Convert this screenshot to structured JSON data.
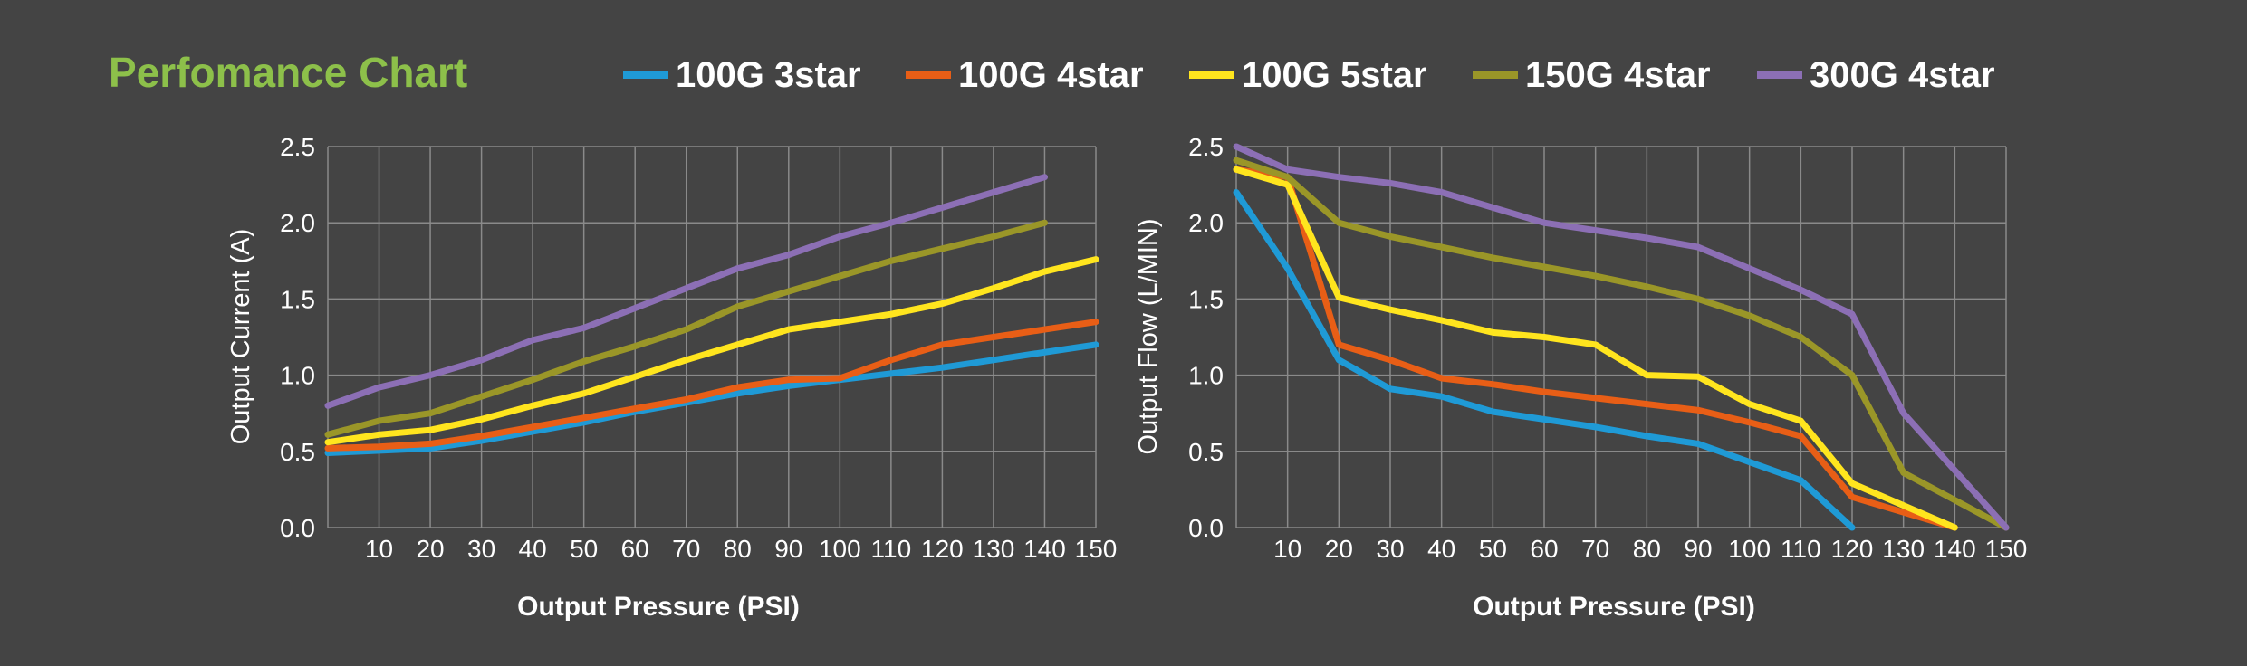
{
  "title": "Perfomance Chart",
  "colors": {
    "background": "#444444",
    "title": "#8dc04a",
    "text": "#ffffff",
    "grid": "#8a8a8a"
  },
  "legend": [
    {
      "name": "100G 3star",
      "color": "#1f9ad6"
    },
    {
      "name": "100G 4star",
      "color": "#e85e16"
    },
    {
      "name": "100G 5star",
      "color": "#ffe51e"
    },
    {
      "name": "150G 4star",
      "color": "#9a9628"
    },
    {
      "name": "300G 4star",
      "color": "#8c6fb5"
    }
  ],
  "chart_data": [
    {
      "type": "line",
      "title": "",
      "xlabel": "Output Pressure (PSI)",
      "ylabel": "Output Current (A)",
      "xlim": [
        0,
        150
      ],
      "ylim": [
        0,
        2.5
      ],
      "x_ticks": [
        10,
        20,
        30,
        40,
        50,
        60,
        70,
        80,
        90,
        100,
        110,
        120,
        130,
        140,
        150
      ],
      "y_ticks": [
        "0.0",
        "0.5",
        "1.0",
        "1.5",
        "2.0",
        "2.5"
      ],
      "grid": true,
      "legend": "top",
      "series": [
        {
          "name": "100G 3star",
          "color": "#1f9ad6",
          "points": [
            [
              0,
              0.49
            ],
            [
              20,
              0.52
            ],
            [
              30,
              0.57
            ],
            [
              40,
              0.63
            ],
            [
              50,
              0.69
            ],
            [
              60,
              0.76
            ],
            [
              70,
              0.82
            ],
            [
              80,
              0.88
            ],
            [
              90,
              0.93
            ],
            [
              100,
              0.97
            ],
            [
              110,
              1.01
            ],
            [
              120,
              1.05
            ],
            [
              130,
              1.1
            ],
            [
              140,
              1.15
            ],
            [
              150,
              1.2
            ]
          ]
        },
        {
          "name": "100G 4star",
          "color": "#e85e16",
          "points": [
            [
              0,
              0.52
            ],
            [
              10,
              0.53
            ],
            [
              20,
              0.55
            ],
            [
              30,
              0.6
            ],
            [
              40,
              0.66
            ],
            [
              50,
              0.72
            ],
            [
              60,
              0.78
            ],
            [
              70,
              0.84
            ],
            [
              80,
              0.92
            ],
            [
              90,
              0.97
            ],
            [
              100,
              0.98
            ],
            [
              110,
              1.1
            ],
            [
              120,
              1.2
            ],
            [
              130,
              1.25
            ],
            [
              140,
              1.3
            ],
            [
              150,
              1.35
            ]
          ]
        },
        {
          "name": "100G 5star",
          "color": "#ffe51e",
          "points": [
            [
              0,
              0.56
            ],
            [
              10,
              0.61
            ],
            [
              20,
              0.64
            ],
            [
              30,
              0.71
            ],
            [
              40,
              0.8
            ],
            [
              50,
              0.88
            ],
            [
              60,
              0.99
            ],
            [
              70,
              1.1
            ],
            [
              80,
              1.2
            ],
            [
              90,
              1.3
            ],
            [
              100,
              1.35
            ],
            [
              110,
              1.4
            ],
            [
              120,
              1.47
            ],
            [
              130,
              1.57
            ],
            [
              140,
              1.68
            ],
            [
              150,
              1.76
            ]
          ]
        },
        {
          "name": "150G 4star",
          "color": "#9a9628",
          "points": [
            [
              0,
              0.61
            ],
            [
              10,
              0.7
            ],
            [
              20,
              0.75
            ],
            [
              30,
              0.86
            ],
            [
              40,
              0.97
            ],
            [
              50,
              1.09
            ],
            [
              60,
              1.19
            ],
            [
              70,
              1.3
            ],
            [
              80,
              1.45
            ],
            [
              90,
              1.55
            ],
            [
              100,
              1.65
            ],
            [
              110,
              1.75
            ],
            [
              120,
              1.83
            ],
            [
              130,
              1.91
            ],
            [
              140,
              2.0
            ]
          ]
        },
        {
          "name": "300G 4star",
          "color": "#8c6fb5",
          "points": [
            [
              0,
              0.8
            ],
            [
              10,
              0.92
            ],
            [
              20,
              1.0
            ],
            [
              30,
              1.1
            ],
            [
              40,
              1.23
            ],
            [
              50,
              1.31
            ],
            [
              60,
              1.44
            ],
            [
              70,
              1.57
            ],
            [
              80,
              1.7
            ],
            [
              90,
              1.79
            ],
            [
              100,
              1.91
            ],
            [
              110,
              2.0
            ],
            [
              120,
              2.1
            ],
            [
              130,
              2.2
            ],
            [
              140,
              2.3
            ]
          ]
        }
      ]
    },
    {
      "type": "line",
      "title": "",
      "xlabel": "Output Pressure (PSI)",
      "ylabel": "Output Flow (L/MIN)",
      "xlim": [
        0,
        150
      ],
      "ylim": [
        0,
        2.5
      ],
      "x_ticks": [
        10,
        20,
        30,
        40,
        50,
        60,
        70,
        80,
        90,
        100,
        110,
        120,
        130,
        140,
        150
      ],
      "y_ticks": [
        "0.0",
        "0.5",
        "1.0",
        "1.5",
        "2.0",
        "2.5"
      ],
      "grid": true,
      "legend": "top",
      "series": [
        {
          "name": "100G 3star",
          "color": "#1f9ad6",
          "points": [
            [
              0,
              2.2
            ],
            [
              10,
              1.7
            ],
            [
              20,
              1.1
            ],
            [
              30,
              0.91
            ],
            [
              40,
              0.86
            ],
            [
              50,
              0.76
            ],
            [
              60,
              0.71
            ],
            [
              70,
              0.66
            ],
            [
              80,
              0.6
            ],
            [
              90,
              0.55
            ],
            [
              100,
              0.43
            ],
            [
              110,
              0.31
            ],
            [
              120,
              0.0
            ]
          ]
        },
        {
          "name": "100G 4star",
          "color": "#e85e16",
          "points": [
            [
              0,
              2.35
            ],
            [
              10,
              2.3
            ],
            [
              20,
              1.2
            ],
            [
              30,
              1.1
            ],
            [
              40,
              0.98
            ],
            [
              50,
              0.94
            ],
            [
              60,
              0.89
            ],
            [
              70,
              0.85
            ],
            [
              80,
              0.81
            ],
            [
              90,
              0.77
            ],
            [
              100,
              0.69
            ],
            [
              110,
              0.6
            ],
            [
              120,
              0.2
            ],
            [
              140,
              0.0
            ]
          ]
        },
        {
          "name": "100G 5star",
          "color": "#ffe51e",
          "points": [
            [
              0,
              2.35
            ],
            [
              10,
              2.25
            ],
            [
              20,
              1.51
            ],
            [
              30,
              1.43
            ],
            [
              40,
              1.36
            ],
            [
              50,
              1.28
            ],
            [
              60,
              1.25
            ],
            [
              70,
              1.2
            ],
            [
              80,
              1.0
            ],
            [
              90,
              0.99
            ],
            [
              100,
              0.81
            ],
            [
              110,
              0.7
            ],
            [
              120,
              0.29
            ],
            [
              140,
              0.0
            ]
          ]
        },
        {
          "name": "150G 4star",
          "color": "#9a9628",
          "points": [
            [
              0,
              2.41
            ],
            [
              10,
              2.3
            ],
            [
              20,
              2.0
            ],
            [
              30,
              1.91
            ],
            [
              40,
              1.84
            ],
            [
              50,
              1.77
            ],
            [
              60,
              1.71
            ],
            [
              70,
              1.65
            ],
            [
              80,
              1.58
            ],
            [
              90,
              1.5
            ],
            [
              100,
              1.39
            ],
            [
              110,
              1.25
            ],
            [
              120,
              1.0
            ],
            [
              130,
              0.36
            ],
            [
              150,
              0.0
            ]
          ]
        },
        {
          "name": "300G 4star",
          "color": "#8c6fb5",
          "points": [
            [
              0,
              2.5
            ],
            [
              10,
              2.35
            ],
            [
              20,
              2.3
            ],
            [
              30,
              2.26
            ],
            [
              40,
              2.2
            ],
            [
              50,
              2.1
            ],
            [
              60,
              2.0
            ],
            [
              70,
              1.95
            ],
            [
              80,
              1.9
            ],
            [
              90,
              1.84
            ],
            [
              100,
              1.7
            ],
            [
              110,
              1.56
            ],
            [
              120,
              1.4
            ],
            [
              130,
              0.75
            ],
            [
              150,
              0.0
            ]
          ]
        }
      ]
    }
  ]
}
